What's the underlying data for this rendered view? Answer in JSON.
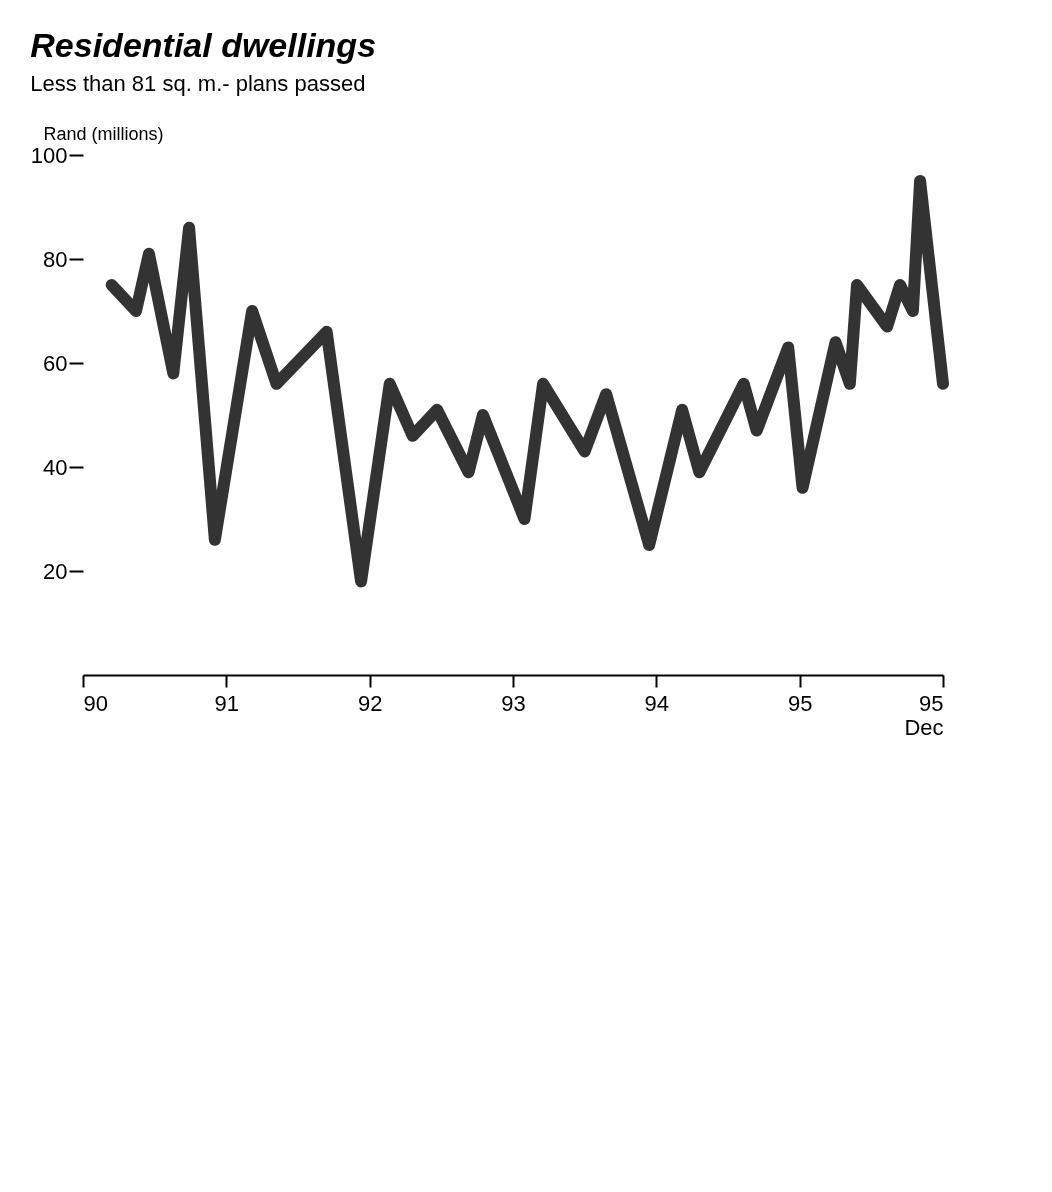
{
  "chart_data": {
    "type": "line",
    "title": "Residential dwellings",
    "subtitle": "Less than 81 sq. m.- plans passed",
    "ylabel": "Rand (millions)",
    "x": [
      1990.2,
      1990.37,
      1990.46,
      1990.63,
      1990.74,
      1990.92,
      1991.18,
      1991.35,
      1991.7,
      1991.94,
      1992.14,
      1992.3,
      1992.47,
      1992.69,
      1992.79,
      1993.08,
      1993.21,
      1993.5,
      1993.65,
      1993.95,
      1994.18,
      1994.3,
      1994.61,
      1994.7,
      1994.92,
      1995.02,
      1995.25,
      1995.35,
      1995.4,
      1995.61,
      1995.7,
      1995.79,
      1995.84,
      1996.0
    ],
    "series": [
      {
        "color": "#333333",
        "values": [
          75,
          70,
          81,
          58,
          86,
          26,
          70,
          56,
          66,
          18,
          56,
          46,
          51,
          39,
          50,
          30,
          56,
          43,
          54,
          25,
          51,
          39,
          56,
          47,
          63,
          36,
          64,
          56,
          75,
          67,
          75,
          70,
          95,
          56
        ]
      }
    ],
    "xlim": [
      1990,
      1996
    ],
    "xticks": [
      {
        "value": 1990,
        "label": "90"
      },
      {
        "value": 1991,
        "label": "91"
      },
      {
        "value": 1992,
        "label": "92"
      },
      {
        "value": 1993,
        "label": "93"
      },
      {
        "value": 1994,
        "label": "94"
      },
      {
        "value": 1995,
        "label": "95"
      },
      {
        "value": 1996,
        "label": "95 Dec"
      }
    ],
    "ylim": [
      0,
      100
    ],
    "yticks": [
      20,
      40,
      60,
      80,
      100
    ],
    "grid": false,
    "line_style": "solid"
  }
}
